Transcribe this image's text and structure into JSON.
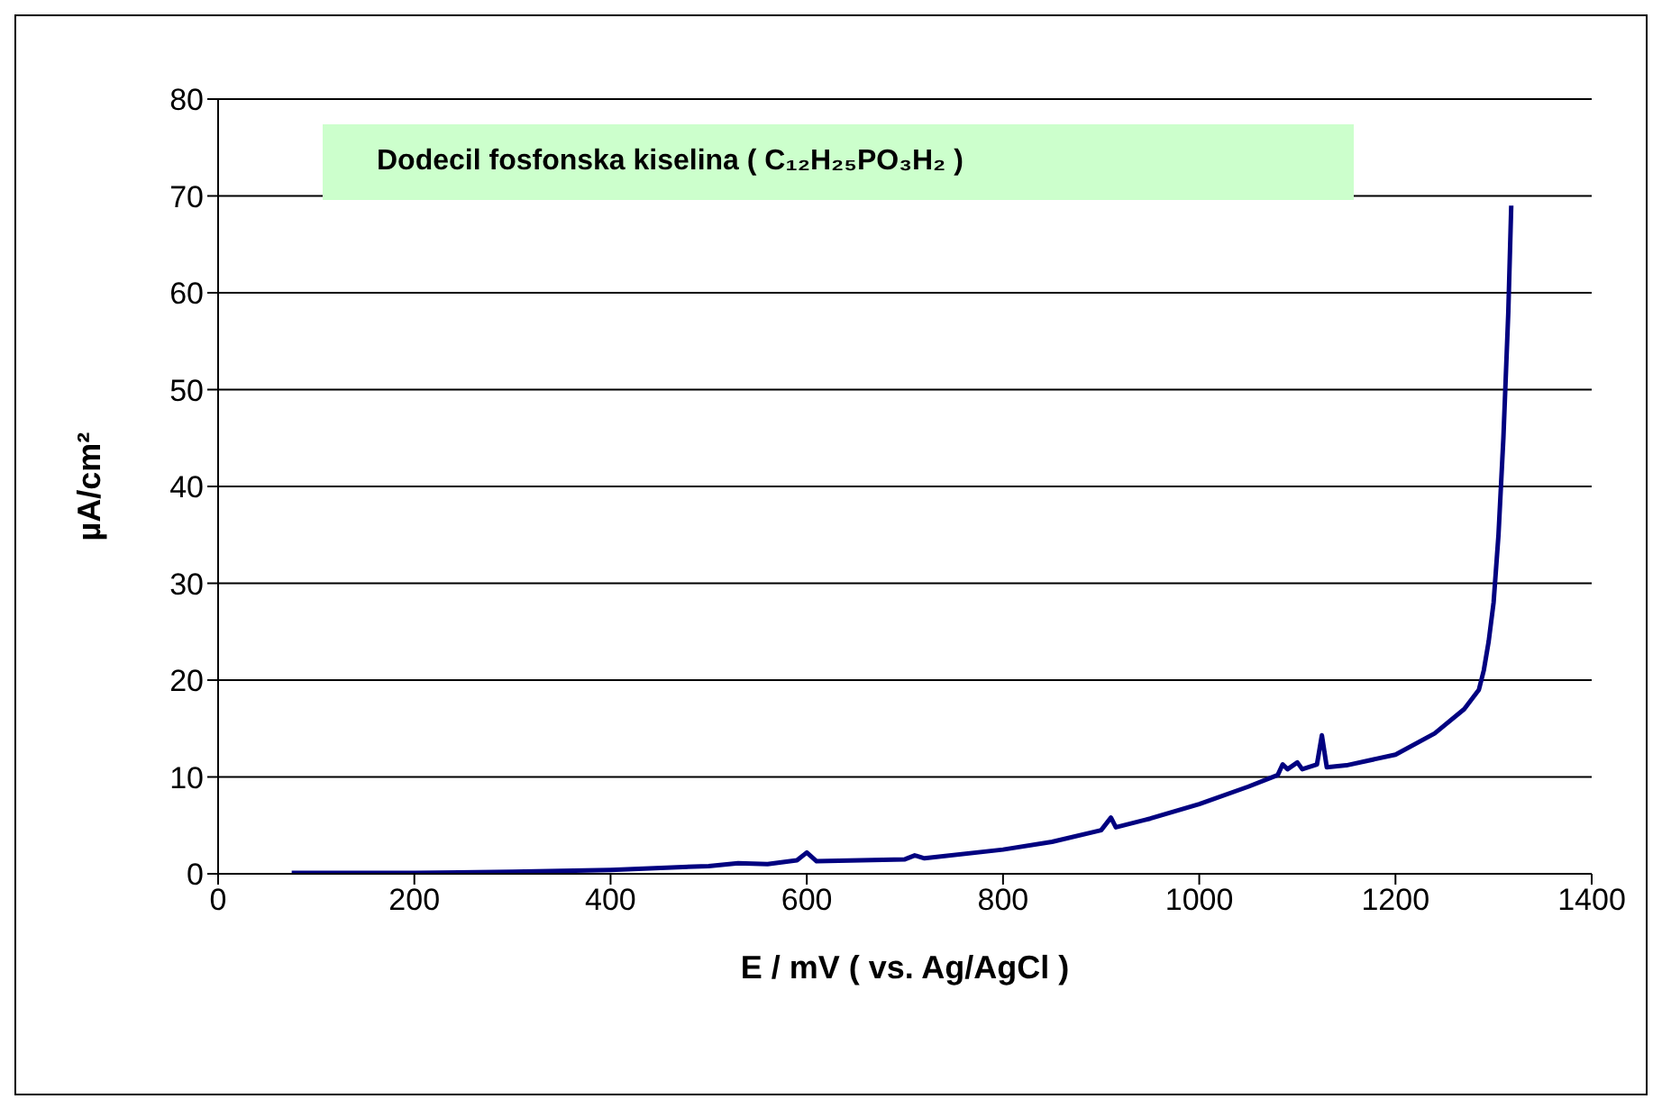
{
  "chart_data": {
    "type": "line",
    "title": "Dodecil fosfonska kiselina ( C₁₂H₂₅PO₃H₂ )",
    "xlabel": "E / mV  ( vs. Ag/AgCl )",
    "ylabel": "µA/cm²",
    "xlim": [
      0,
      1400
    ],
    "xticks": [
      0,
      200,
      400,
      600,
      800,
      1000,
      1200,
      1400
    ],
    "ylim": [
      0,
      80
    ],
    "yticks": [
      0,
      10,
      20,
      30,
      40,
      50,
      60,
      70,
      80
    ],
    "grid": "y",
    "marker": "none",
    "line_style": "solid",
    "series": [
      {
        "color": "#000080",
        "x": [
          75,
          200,
          300,
          400,
          500,
          530,
          560,
          590,
          600,
          610,
          700,
          710,
          720,
          800,
          850,
          900,
          910,
          915,
          950,
          1000,
          1050,
          1080,
          1085,
          1090,
          1100,
          1105,
          1120,
          1125,
          1130,
          1150,
          1200,
          1240,
          1270,
          1285,
          1290,
          1295,
          1300,
          1305,
          1310,
          1315,
          1318
        ],
        "values": [
          0.1,
          0.1,
          0.2,
          0.4,
          0.8,
          1.1,
          1.0,
          1.4,
          2.2,
          1.3,
          1.5,
          1.9,
          1.6,
          2.5,
          3.3,
          4.5,
          5.8,
          4.8,
          5.7,
          7.2,
          9.0,
          10.2,
          11.3,
          10.8,
          11.5,
          10.8,
          11.3,
          14.3,
          11.0,
          11.2,
          12.3,
          14.5,
          17,
          19,
          21,
          24,
          28,
          35,
          45,
          58,
          69
        ]
      }
    ]
  }
}
